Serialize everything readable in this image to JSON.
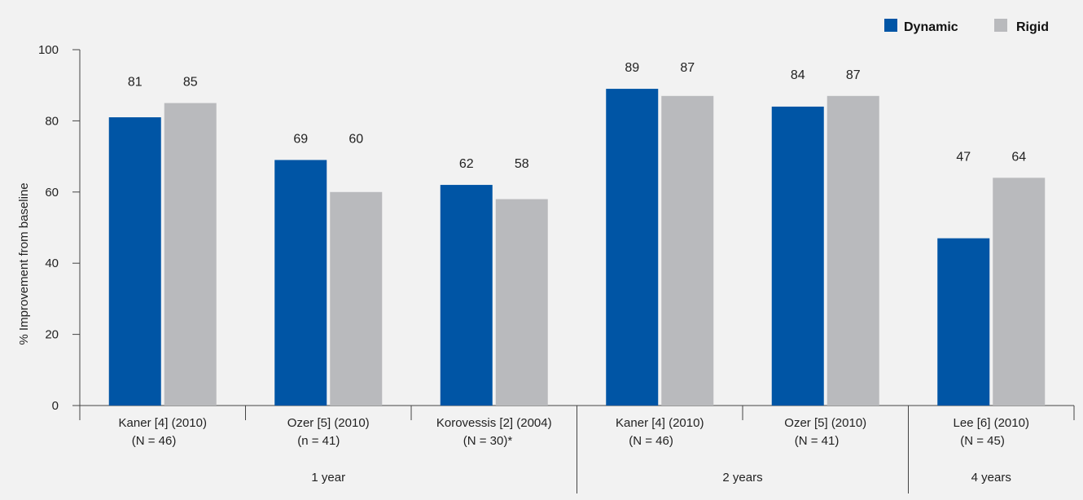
{
  "chart_data": {
    "type": "bar",
    "ylabel": "% Improvement from baseline",
    "ylim": [
      0,
      100
    ],
    "yticks": [
      0,
      20,
      40,
      60,
      80,
      100
    ],
    "legend": "top-right",
    "grid": false,
    "categories": [
      {
        "line1": "Kaner [4] (2010)",
        "line2": "(N = 46)"
      },
      {
        "line1": "Ozer [5] (2010)",
        "line2": "(n = 41)"
      },
      {
        "line1": "Korovessis [2] (2004)",
        "line2": "(N = 30)*"
      },
      {
        "line1": "Kaner [4] (2010)",
        "line2": "(N = 46)"
      },
      {
        "line1": "Ozer [5] (2010)",
        "line2": "(N = 41)"
      },
      {
        "line1": "Lee [6] (2010)",
        "line2": "(N = 45)"
      }
    ],
    "groups": [
      {
        "label": "1 year",
        "categories": [
          0,
          1,
          2
        ]
      },
      {
        "label": "2 years",
        "categories": [
          3,
          4
        ]
      },
      {
        "label": "4 years",
        "categories": [
          5
        ]
      }
    ],
    "series": [
      {
        "name": "Dynamic",
        "color": "#0055a5",
        "values": [
          81,
          69,
          62,
          89,
          84,
          47
        ]
      },
      {
        "name": "Rigid",
        "color": "#b9babd",
        "values": [
          85,
          60,
          58,
          87,
          87,
          64
        ]
      }
    ]
  }
}
